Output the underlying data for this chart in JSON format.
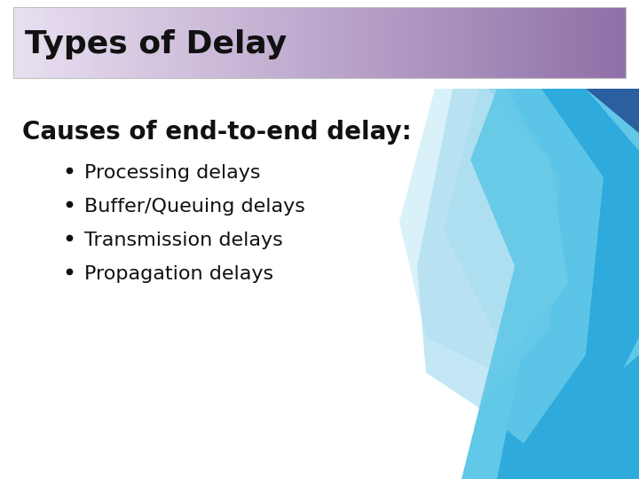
{
  "title": "Types of Delay",
  "subtitle": "Causes of end-to-end delay:",
  "bullet_points": [
    "Processing delays",
    "Buffer/Queuing delays",
    "Transmission delays",
    "Propagation delays"
  ],
  "title_grad_left": "#e8dff0",
  "title_grad_right": "#9070a8",
  "title_font_size": 26,
  "subtitle_font_size": 20,
  "bullet_font_size": 16,
  "bg_color": "#ffffff",
  "title_text_color": "#111111",
  "subtitle_text_color": "#111111",
  "bullet_text_color": "#111111",
  "deco_dark_blue": "#2b5fa0",
  "deco_mid_blue": "#2eaadc",
  "deco_light_blue": "#62c8e8",
  "deco_pale_blue": "#aaddf0",
  "deco_very_pale": "#d0eef8"
}
